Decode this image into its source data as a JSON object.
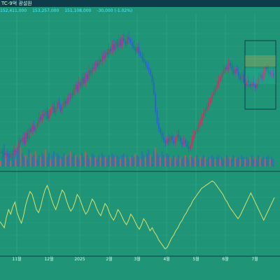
{
  "header": {
    "title": "TC-9억 광설원"
  },
  "toolbar": {
    "values": [
      "152,411,000",
      "153,257,000",
      "151,108,000",
      "-30,000 (-1.02%)"
    ]
  },
  "colors": {
    "background": "#1f9477",
    "up": "#cc2f5d",
    "down": "#2a5fd6",
    "volume_up": "#c85a54",
    "volume_down": "#2f6fb2",
    "indicator": "#d8e26a",
    "grid": "#3bbf92"
  },
  "chart_data": [
    {
      "type": "candlestick",
      "x_tick_labels": [
        "11월",
        "12월",
        "2025",
        "2월",
        "3월",
        "4월",
        "5월",
        "6월",
        "7월"
      ],
      "grid": true,
      "legend": "none",
      "close_series": [
        112,
        111,
        110,
        111,
        109,
        108,
        111,
        110,
        113,
        112,
        115,
        120,
        119,
        122,
        118,
        125,
        121,
        128,
        126,
        130,
        127,
        129,
        132,
        136,
        134,
        138,
        137,
        140,
        135,
        138,
        141,
        143,
        139,
        142,
        146,
        144,
        140,
        143,
        147,
        145,
        149,
        148,
        152,
        151,
        155,
        158,
        154,
        160,
        157,
        163,
        159,
        165,
        162,
        168,
        166,
        170,
        169,
        173,
        171,
        175,
        174,
        178,
        176,
        180,
        179,
        183,
        181,
        186,
        182,
        187,
        184,
        189,
        185,
        190,
        188,
        186,
        191,
        189,
        187,
        185,
        183,
        181,
        184,
        180,
        178,
        176,
        174,
        172,
        170,
        168,
        165,
        160,
        152,
        140,
        132,
        128,
        125,
        122,
        120,
        118,
        121,
        119,
        123,
        120,
        118,
        121,
        124,
        122,
        119,
        117,
        120,
        118,
        116,
        114,
        117,
        121,
        124,
        126,
        128,
        131,
        133,
        136,
        139,
        141,
        143,
        146,
        148,
        151,
        153,
        156,
        158,
        161,
        163,
        166,
        168,
        170,
        169,
        173,
        171,
        168,
        166,
        169,
        167,
        164,
        162,
        165,
        160,
        158,
        161,
        159,
        157,
        160,
        158,
        156,
        159,
        163,
        165,
        162,
        166,
        170,
        168,
        167,
        165,
        166,
        164
      ]
    },
    {
      "type": "bar",
      "series": [
        {
          "values": [
            3,
            5,
            12,
            6,
            4,
            7,
            3,
            5,
            9,
            4,
            8,
            14,
            10,
            7,
            5,
            6,
            4,
            9,
            7,
            5,
            6,
            8,
            4,
            6,
            5,
            7,
            6,
            9,
            5,
            7,
            4,
            6,
            8,
            5,
            7,
            6,
            4,
            5,
            7,
            6,
            5,
            6,
            8,
            5,
            7,
            6,
            5,
            4,
            6,
            7,
            5,
            8,
            6,
            4,
            5,
            7,
            6,
            5,
            4,
            6,
            5,
            7,
            6,
            5,
            4,
            6,
            5,
            7,
            6,
            5,
            6,
            5,
            4,
            6,
            7,
            5,
            6,
            4,
            5,
            6,
            5,
            7,
            6,
            5,
            4,
            8,
            6,
            5,
            7,
            9,
            6,
            5,
            8,
            10,
            7,
            6,
            5,
            8,
            6,
            5,
            7,
            6,
            5,
            4,
            6,
            5,
            4,
            6,
            5,
            4,
            5,
            6,
            5,
            4,
            6,
            5,
            4,
            5,
            6,
            4,
            5,
            4,
            6,
            5,
            4,
            5,
            4,
            6,
            5,
            4,
            5,
            6,
            4,
            5,
            4,
            5,
            6,
            4,
            5,
            4,
            6,
            5,
            4,
            5,
            4,
            6,
            5,
            4,
            5,
            4,
            5,
            6,
            4,
            5,
            4,
            6,
            5,
            4,
            5,
            4,
            5,
            6,
            4,
            5,
            4
          ]
        }
      ]
    },
    {
      "type": "line",
      "series": [
        {
          "values": [
            42,
            40,
            38,
            45,
            50,
            47,
            52,
            55,
            48,
            44,
            41,
            46,
            53,
            58,
            62,
            60,
            55,
            50,
            48,
            52,
            58,
            63,
            66,
            62,
            57,
            53,
            50,
            54,
            59,
            63,
            61,
            56,
            52,
            49,
            51,
            55,
            60,
            58,
            54,
            50,
            47,
            49,
            53,
            57,
            55,
            51,
            48,
            46,
            50,
            54,
            52,
            48,
            45,
            43,
            46,
            50,
            48,
            45,
            42,
            40,
            43,
            47,
            45,
            42,
            39,
            37,
            40,
            44,
            42,
            39,
            36,
            38,
            35,
            33,
            30,
            28,
            26,
            24,
            25,
            28,
            31,
            33,
            36,
            38,
            41,
            43,
            46,
            48,
            51,
            53,
            56,
            58,
            60,
            62,
            64,
            65,
            66,
            67,
            68,
            69,
            68,
            66,
            64,
            62,
            60,
            57,
            55,
            52,
            50,
            48,
            46,
            44,
            46,
            49,
            52,
            55,
            58,
            61,
            58,
            55,
            52,
            49,
            46,
            43,
            46,
            49,
            52,
            55,
            58
          ]
        }
      ]
    }
  ]
}
